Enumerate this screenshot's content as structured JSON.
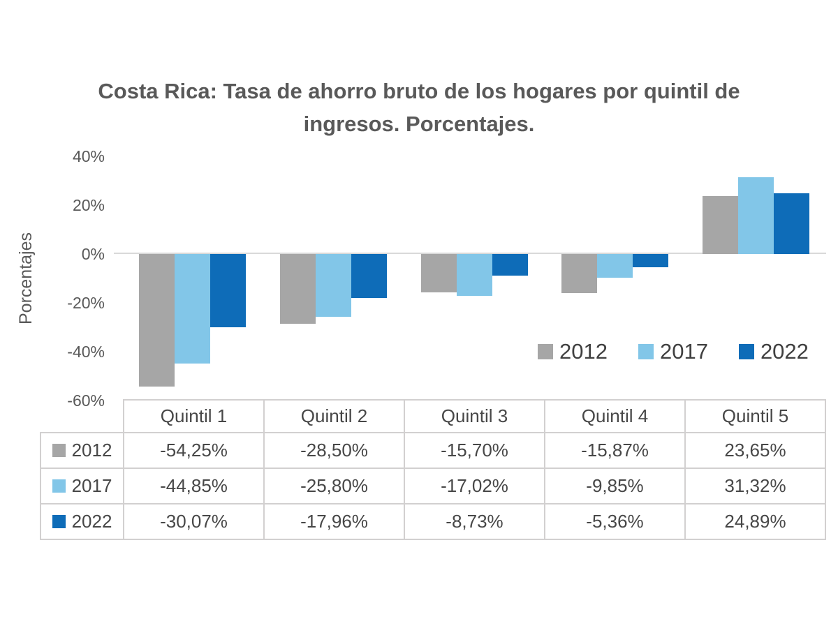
{
  "chart_data": {
    "type": "bar",
    "title": "Costa Rica: Tasa de ahorro bruto de los hogares por quintil de ingresos. Porcentajes.",
    "xlabel": "",
    "ylabel": "Porcentajes",
    "categories": [
      "Quintil 1",
      "Quintil 2",
      "Quintil 3",
      "Quintil 4",
      "Quintil 5"
    ],
    "series": [
      {
        "name": "2012",
        "color": "#a6a6a6",
        "values": [
          -54.25,
          -28.5,
          -15.7,
          -15.87,
          23.65
        ]
      },
      {
        "name": "2017",
        "color": "#82c6e8",
        "values": [
          -44.85,
          -25.8,
          -17.02,
          -9.85,
          31.32
        ]
      },
      {
        "name": "2022",
        "color": "#0e6cb8",
        "values": [
          -30.07,
          -17.96,
          -8.73,
          -5.36,
          24.89
        ]
      }
    ],
    "ylim": [
      -60,
      40
    ],
    "yticks": [
      {
        "value": 40,
        "label": "40%"
      },
      {
        "value": 20,
        "label": "20%"
      },
      {
        "value": 0,
        "label": "0%"
      },
      {
        "value": -20,
        "label": "-20%"
      },
      {
        "value": -40,
        "label": "-40%"
      },
      {
        "value": -60,
        "label": "-60%"
      }
    ],
    "grid": false,
    "legend_position": "inside-right"
  },
  "table": {
    "col_headers": [
      "Quintil 1",
      "Quintil 2",
      "Quintil 3",
      "Quintil 4",
      "Quintil 5"
    ],
    "rows": [
      {
        "label": "2012",
        "swatch_color": "#a6a6a6",
        "values": [
          "-54,25%",
          "-28,50%",
          "-15,70%",
          "-15,87%",
          "23,65%"
        ]
      },
      {
        "label": "2017",
        "swatch_color": "#82c6e8",
        "values": [
          "-44,85%",
          "-25,80%",
          "-17,02%",
          "-9,85%",
          "31,32%"
        ]
      },
      {
        "label": "2022",
        "swatch_color": "#0e6cb8",
        "values": [
          "-30,07%",
          "-17,96%",
          "-8,73%",
          "-5,36%",
          "24,89%"
        ]
      }
    ]
  },
  "colors": {
    "title_text": "#595959",
    "axis_text": "#595959",
    "legend_text": "#404040",
    "table_text": "#474747",
    "axis_line": "#d9d9d9",
    "table_border": "#d2d0d0",
    "background": "#ffffff"
  }
}
